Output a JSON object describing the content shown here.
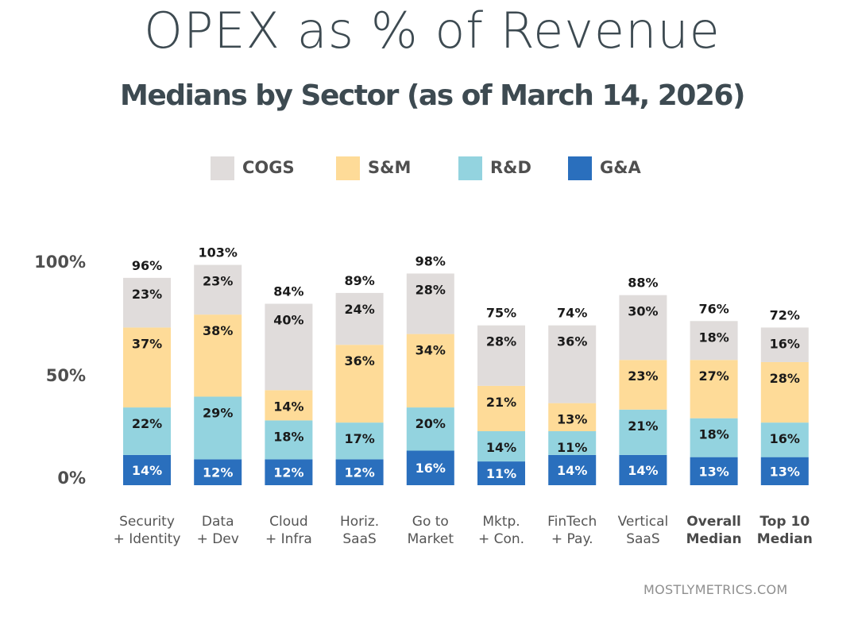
{
  "header": {
    "title": "OPEX as % of Revenue",
    "subtitle": "Medians by Sector (as of March 14, 2026)"
  },
  "watermark": "MOSTLYMETRICS.COM",
  "colors": {
    "COGS": "#e0dcdb",
    "S&M": "#fedb98",
    "R&D": "#93d3df",
    "G&A": "#2a6fbd",
    "text_dark": "#1a1a1a",
    "text_on_ga": "#ffffff"
  },
  "chart_data": {
    "type": "bar",
    "stacked": true,
    "title": "OPEX as % of Revenue",
    "subtitle": "Medians by Sector (as of March 14, 2026)",
    "xlabel": "",
    "ylabel": "",
    "ylim": [
      0,
      100
    ],
    "yticks": [
      "0%",
      "50%",
      "100%"
    ],
    "ytick_values": [
      0,
      50,
      100
    ],
    "grid": false,
    "legend_position": "top-center",
    "legend": [
      "COGS",
      "S&M",
      "R&D",
      "G&A"
    ],
    "categories": [
      {
        "line1": "Security",
        "line2": "+ Identity",
        "bold": false
      },
      {
        "line1": "Data",
        "line2": "+ Dev",
        "bold": false
      },
      {
        "line1": "Cloud",
        "line2": "+ Infra",
        "bold": false
      },
      {
        "line1": "Horiz.",
        "line2": "SaaS",
        "bold": false
      },
      {
        "line1": "Go to",
        "line2": "Market",
        "bold": false
      },
      {
        "line1": "Mktp.",
        "line2": "+ Con.",
        "bold": false
      },
      {
        "line1": "FinTech",
        "line2": "+ Pay.",
        "bold": false
      },
      {
        "line1": "Vertical",
        "line2": "SaaS",
        "bold": false
      },
      {
        "line1": "Overall",
        "line2": "Median",
        "bold": true
      },
      {
        "line1": "Top 10",
        "line2": "Median",
        "bold": true
      }
    ],
    "series": [
      {
        "name": "G&A",
        "values": [
          14,
          12,
          12,
          12,
          16,
          11,
          14,
          14,
          13,
          13
        ]
      },
      {
        "name": "R&D",
        "values": [
          22,
          29,
          18,
          17,
          20,
          14,
          11,
          21,
          18,
          16
        ]
      },
      {
        "name": "S&M",
        "values": [
          37,
          38,
          14,
          36,
          34,
          21,
          13,
          23,
          27,
          28
        ]
      },
      {
        "name": "COGS",
        "values": [
          23,
          23,
          40,
          24,
          28,
          28,
          36,
          30,
          18,
          16
        ]
      }
    ],
    "totals": [
      "96%",
      "103%",
      "84%",
      "89%",
      "98%",
      "75%",
      "74%",
      "88%",
      "76%",
      "72%"
    ]
  }
}
